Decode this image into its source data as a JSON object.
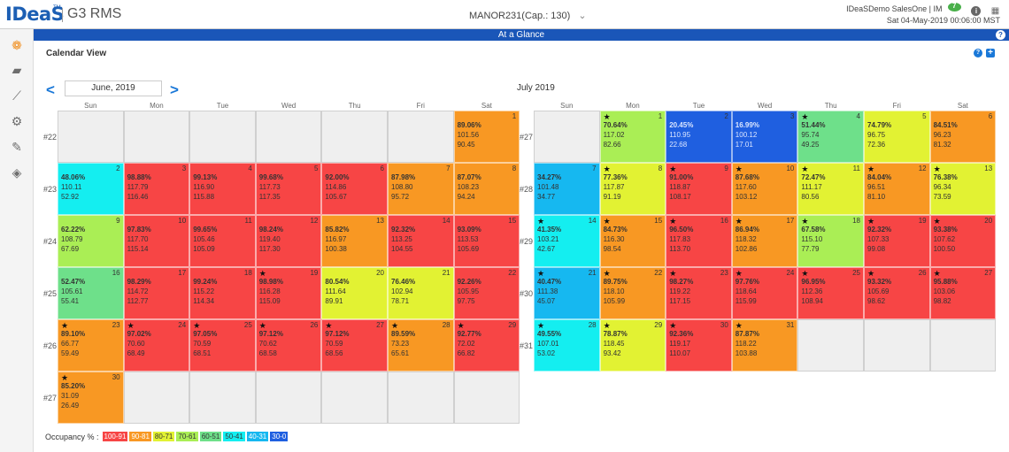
{
  "header": {
    "logo": "IDeaS",
    "logo_tm": "TM",
    "product": "G3 RMS",
    "property": "MANOR231(Cap.: 130)",
    "property_caret": "⌄",
    "user": "IDeaSDemo SalesOne | IM",
    "chat_count": "7",
    "datetime": "Sat 04-May-2019 00:06:00 MST"
  },
  "page": {
    "title": "At a Glance",
    "panel_title": "Calendar View",
    "month_input": "June, 2019",
    "second_month": "July 2019"
  },
  "weekdays": [
    "Sun",
    "Mon",
    "Tue",
    "Wed",
    "Thu",
    "Fri",
    "Sat"
  ],
  "june": {
    "weeks": [
      "#22",
      "#23",
      "#24",
      "#25",
      "#26",
      "#27"
    ],
    "cells": [
      null,
      null,
      null,
      null,
      null,
      null,
      {
        "day": "1",
        "color": "#f89823",
        "values": [
          "89.06%",
          "101.56",
          "90.45"
        ],
        "star": false
      },
      {
        "day": "2",
        "color": "#14eef0",
        "values": [
          "48.06%",
          "110.11",
          "52.92"
        ],
        "star": false
      },
      {
        "day": "3",
        "color": "#f74545",
        "values": [
          "98.88%",
          "117.79",
          "116.46"
        ],
        "star": false
      },
      {
        "day": "4",
        "color": "#f74545",
        "values": [
          "99.13%",
          "116.90",
          "115.88"
        ],
        "star": false
      },
      {
        "day": "5",
        "color": "#f74545",
        "values": [
          "99.68%",
          "117.73",
          "117.35"
        ],
        "star": false
      },
      {
        "day": "6",
        "color": "#f74545",
        "values": [
          "92.00%",
          "114.86",
          "105.67"
        ],
        "star": false
      },
      {
        "day": "7",
        "color": "#f89823",
        "values": [
          "87.98%",
          "108.80",
          "95.72"
        ],
        "star": false
      },
      {
        "day": "8",
        "color": "#f89823",
        "values": [
          "87.07%",
          "108.23",
          "94.24"
        ],
        "star": false
      },
      {
        "day": "9",
        "color": "#aaee55",
        "values": [
          "62.22%",
          "108.79",
          "67.69"
        ],
        "star": false
      },
      {
        "day": "10",
        "color": "#f74545",
        "values": [
          "97.83%",
          "117.70",
          "115.14"
        ],
        "star": false
      },
      {
        "day": "11",
        "color": "#f74545",
        "values": [
          "99.65%",
          "105.46",
          "105.09"
        ],
        "star": false
      },
      {
        "day": "12",
        "color": "#f74545",
        "values": [
          "98.24%",
          "119.40",
          "117.30"
        ],
        "star": false
      },
      {
        "day": "13",
        "color": "#f89823",
        "values": [
          "85.82%",
          "116.97",
          "100.38"
        ],
        "star": false
      },
      {
        "day": "14",
        "color": "#f74545",
        "values": [
          "92.32%",
          "113.25",
          "104.55"
        ],
        "star": false
      },
      {
        "day": "15",
        "color": "#f74545",
        "values": [
          "93.09%",
          "113.53",
          "105.69"
        ],
        "star": false
      },
      {
        "day": "16",
        "color": "#6ee08a",
        "values": [
          "52.47%",
          "105.61",
          "55.41"
        ],
        "star": false
      },
      {
        "day": "17",
        "color": "#f74545",
        "values": [
          "98.29%",
          "114.72",
          "112.77"
        ],
        "star": false
      },
      {
        "day": "18",
        "color": "#f74545",
        "values": [
          "99.24%",
          "115.22",
          "114.34"
        ],
        "star": false
      },
      {
        "day": "19",
        "color": "#f74545",
        "values": [
          "98.98%",
          "116.28",
          "115.09"
        ],
        "star": true
      },
      {
        "day": "20",
        "color": "#e2f233",
        "values": [
          "80.54%",
          "111.64",
          "89.91"
        ],
        "star": false
      },
      {
        "day": "21",
        "color": "#e2f233",
        "values": [
          "76.46%",
          "102.94",
          "78.71"
        ],
        "star": false
      },
      {
        "day": "22",
        "color": "#f74545",
        "values": [
          "92.26%",
          "105.95",
          "97.75"
        ],
        "star": false
      },
      {
        "day": "23",
        "color": "#f89823",
        "values": [
          "89.10%",
          "66.77",
          "59.49"
        ],
        "star": true
      },
      {
        "day": "24",
        "color": "#f74545",
        "values": [
          "97.02%",
          "70.60",
          "68.49"
        ],
        "star": true
      },
      {
        "day": "25",
        "color": "#f74545",
        "values": [
          "97.05%",
          "70.59",
          "68.51"
        ],
        "star": true
      },
      {
        "day": "26",
        "color": "#f74545",
        "values": [
          "97.12%",
          "70.62",
          "68.58"
        ],
        "star": true
      },
      {
        "day": "27",
        "color": "#f74545",
        "values": [
          "97.12%",
          "70.59",
          "68.56"
        ],
        "star": true
      },
      {
        "day": "28",
        "color": "#f89823",
        "values": [
          "89.59%",
          "73.23",
          "65.61"
        ],
        "star": true
      },
      {
        "day": "29",
        "color": "#f74545",
        "values": [
          "92.77%",
          "72.02",
          "66.82"
        ],
        "star": true
      },
      {
        "day": "30",
        "color": "#f89823",
        "values": [
          "85.20%",
          "31.09",
          "26.49"
        ],
        "star": true
      },
      null,
      null,
      null,
      null,
      null,
      null
    ]
  },
  "july": {
    "weeks": [
      "#27",
      "#28",
      "#29",
      "#30",
      "#31"
    ],
    "cells": [
      null,
      {
        "day": "1",
        "color": "#aaee55",
        "values": [
          "70.64%",
          "117.02",
          "82.66"
        ],
        "star": true
      },
      {
        "day": "2",
        "color": "#1f5fe0",
        "values": [
          "20.45%",
          "110.95",
          "22.68"
        ],
        "star": false
      },
      {
        "day": "3",
        "color": "#1f5fe0",
        "values": [
          "16.99%",
          "100.12",
          "17.01"
        ],
        "star": false
      },
      {
        "day": "4",
        "color": "#6ee08a",
        "values": [
          "51.44%",
          "95.74",
          "49.25"
        ],
        "star": true
      },
      {
        "day": "5",
        "color": "#e2f233",
        "values": [
          "74.79%",
          "96.75",
          "72.36"
        ],
        "star": false
      },
      {
        "day": "6",
        "color": "#f89823",
        "values": [
          "84.51%",
          "96.23",
          "81.32"
        ],
        "star": false
      },
      {
        "day": "7",
        "color": "#16b8f0",
        "values": [
          "34.27%",
          "101.48",
          "34.77"
        ],
        "star": false
      },
      {
        "day": "8",
        "color": "#e2f233",
        "values": [
          "77.36%",
          "117.87",
          "91.19"
        ],
        "star": true
      },
      {
        "day": "9",
        "color": "#f74545",
        "values": [
          "91.00%",
          "118.87",
          "108.17"
        ],
        "star": true
      },
      {
        "day": "10",
        "color": "#f89823",
        "values": [
          "87.68%",
          "117.60",
          "103.12"
        ],
        "star": true
      },
      {
        "day": "11",
        "color": "#e2f233",
        "values": [
          "72.47%",
          "111.17",
          "80.56"
        ],
        "star": true
      },
      {
        "day": "12",
        "color": "#f89823",
        "values": [
          "84.04%",
          "96.51",
          "81.10"
        ],
        "star": true
      },
      {
        "day": "13",
        "color": "#e2f233",
        "values": [
          "76.38%",
          "96.34",
          "73.59"
        ],
        "star": true
      },
      {
        "day": "14",
        "color": "#14eef0",
        "values": [
          "41.35%",
          "103.21",
          "42.67"
        ],
        "star": true
      },
      {
        "day": "15",
        "color": "#f89823",
        "values": [
          "84.73%",
          "116.30",
          "98.54"
        ],
        "star": true
      },
      {
        "day": "16",
        "color": "#f74545",
        "values": [
          "96.50%",
          "117.83",
          "113.70"
        ],
        "star": true
      },
      {
        "day": "17",
        "color": "#f89823",
        "values": [
          "86.94%",
          "118.32",
          "102.86"
        ],
        "star": true
      },
      {
        "day": "18",
        "color": "#aaee55",
        "values": [
          "67.58%",
          "115.10",
          "77.79"
        ],
        "star": true
      },
      {
        "day": "19",
        "color": "#f74545",
        "values": [
          "92.32%",
          "107.33",
          "99.08"
        ],
        "star": true
      },
      {
        "day": "20",
        "color": "#f74545",
        "values": [
          "93.38%",
          "107.62",
          "100.50"
        ],
        "star": true
      },
      {
        "day": "21",
        "color": "#16b8f0",
        "values": [
          "40.47%",
          "111.38",
          "45.07"
        ],
        "star": true
      },
      {
        "day": "22",
        "color": "#f89823",
        "values": [
          "89.75%",
          "118.10",
          "105.99"
        ],
        "star": true
      },
      {
        "day": "23",
        "color": "#f74545",
        "values": [
          "98.27%",
          "119.22",
          "117.15"
        ],
        "star": true
      },
      {
        "day": "24",
        "color": "#f74545",
        "values": [
          "97.76%",
          "118.64",
          "115.99"
        ],
        "star": true
      },
      {
        "day": "25",
        "color": "#f74545",
        "values": [
          "96.95%",
          "112.36",
          "108.94"
        ],
        "star": true
      },
      {
        "day": "26",
        "color": "#f74545",
        "values": [
          "93.32%",
          "105.69",
          "98.62"
        ],
        "star": true
      },
      {
        "day": "27",
        "color": "#f74545",
        "values": [
          "95.88%",
          "103.06",
          "98.82"
        ],
        "star": true
      },
      {
        "day": "28",
        "color": "#14eef0",
        "values": [
          "49.55%",
          "107.01",
          "53.02"
        ],
        "star": true
      },
      {
        "day": "29",
        "color": "#e2f233",
        "values": [
          "78.87%",
          "118.45",
          "93.42"
        ],
        "star": true
      },
      {
        "day": "30",
        "color": "#f74545",
        "values": [
          "92.36%",
          "119.17",
          "110.07"
        ],
        "star": true
      },
      {
        "day": "31",
        "color": "#f89823",
        "values": [
          "87.87%",
          "118.22",
          "103.88"
        ],
        "star": true
      },
      null,
      null,
      null
    ]
  },
  "legend": {
    "label": "Occupancy % :",
    "items": [
      {
        "label": "100-91",
        "color": "#f74545"
      },
      {
        "label": "90-81",
        "color": "#f89823"
      },
      {
        "label": "80-71",
        "color": "#e2f233"
      },
      {
        "label": "70-61",
        "color": "#aaee55"
      },
      {
        "label": "60-51",
        "color": "#6ee08a"
      },
      {
        "label": "50-41",
        "color": "#14eef0"
      },
      {
        "label": "40-31",
        "color": "#16b8f0"
      },
      {
        "label": "30-0",
        "color": "#1f5fe0"
      }
    ]
  }
}
